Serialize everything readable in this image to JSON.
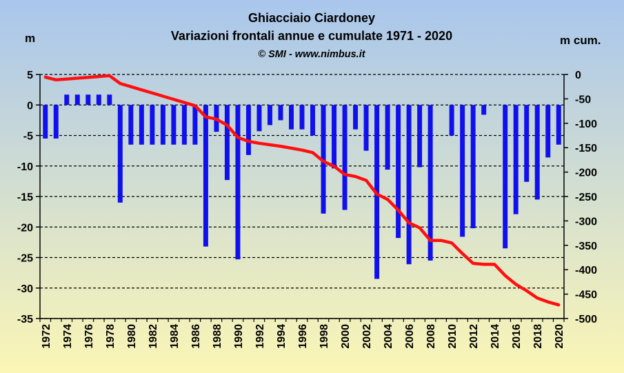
{
  "chart_data": {
    "type": "bar+line",
    "title": "Ghiacciaio Ciardoney",
    "subtitle": "Variazioni frontali annue e cumulate 1971 - 2020",
    "credit": "© SMI - www.nimbus.it",
    "ylabel_left": "m",
    "ylabel_right": "m cum.",
    "ylim_left": [
      -35,
      5
    ],
    "ylim_right": [
      -500,
      0
    ],
    "left_ticks": [
      5,
      0,
      -5,
      -10,
      -15,
      -20,
      -25,
      -30,
      -35
    ],
    "right_ticks": [
      0,
      -50,
      -100,
      -150,
      -200,
      -250,
      -300,
      -350,
      -400,
      -450,
      -500
    ],
    "x_tick_labels": [
      "1972",
      "1974",
      "1976",
      "1978",
      "1980",
      "1982",
      "1984",
      "1986",
      "1988",
      "1990",
      "1992",
      "1994",
      "1996",
      "1998",
      "2000",
      "2002",
      "2004",
      "2006",
      "2008",
      "2010",
      "2012",
      "2014",
      "2016",
      "2018",
      "2020"
    ],
    "grid": "horizontal dashed",
    "years": [
      1972,
      1973,
      1974,
      1975,
      1976,
      1977,
      1978,
      1979,
      1980,
      1981,
      1982,
      1983,
      1984,
      1985,
      1986,
      1987,
      1988,
      1989,
      1990,
      1991,
      1992,
      1993,
      1994,
      1995,
      1996,
      1997,
      1998,
      1999,
      2000,
      2001,
      2002,
      2003,
      2004,
      2005,
      2006,
      2007,
      2008,
      2009,
      2010,
      2011,
      2012,
      2013,
      2014,
      2015,
      2016,
      2017,
      2018,
      2019,
      2020
    ],
    "series": [
      {
        "kind": "bar",
        "axis": "left",
        "color": "#1010ee",
        "values": [
          -5.5,
          -5.5,
          1.7,
          1.7,
          1.7,
          1.7,
          1.7,
          -16,
          -6.5,
          -6.5,
          -6.5,
          -6.5,
          -6.5,
          -6.5,
          -6.5,
          -23.2,
          -4.4,
          -12.3,
          -25.3,
          -8.2,
          -4.3,
          -3.3,
          -2.5,
          -4.0,
          -4.0,
          -5.0,
          -17.8,
          -10.4,
          -17.2,
          -4.0,
          -7.5,
          -28.5,
          -10.6,
          -21.8,
          -26.1,
          -10.2,
          -25.5,
          0,
          -5.0,
          -21.6,
          -20.2,
          -1.6,
          0,
          -23.5,
          -17.9,
          -12.6,
          -15.5,
          -8.6,
          -6.5
        ]
      },
      {
        "kind": "line",
        "axis": "right",
        "color": "#ff1010",
        "values": [
          -5.5,
          -11,
          -9.3,
          -7.6,
          -5.9,
          -4.2,
          -2.5,
          -18.5,
          -25,
          -31.5,
          -38,
          -44.5,
          -51,
          -57.5,
          -64,
          -87,
          -91.5,
          -104,
          -129,
          -137,
          -141,
          -144,
          -147,
          -151,
          -155,
          -160,
          -178,
          -188,
          -205,
          -209,
          -217,
          -245,
          -256,
          -278,
          -304,
          -314,
          -340,
          -340,
          -345,
          -367,
          -387,
          -389,
          -389,
          -412,
          -430,
          -443,
          -458,
          -466,
          -472
        ]
      }
    ]
  }
}
